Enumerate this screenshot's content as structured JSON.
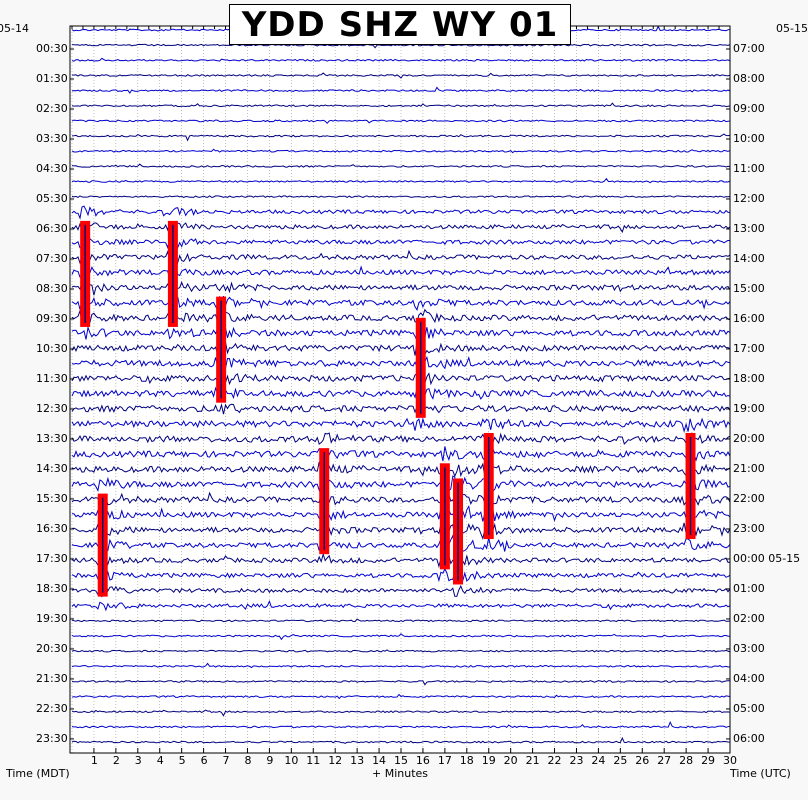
{
  "title": "YDD SHZ WY 01",
  "left_date": "05-14",
  "right_date": "05-15",
  "chart_data": {
    "type": "helicorder",
    "station": "YDD",
    "channel": "SHZ",
    "network": "WY",
    "location": "01",
    "xlabel": "+ Minutes",
    "ylabel_left": "Time (MDT)",
    "ylabel_right": "Time (UTC)",
    "xlim": [
      0,
      30
    ],
    "x_ticks": [
      "1",
      "2",
      "3",
      "4",
      "5",
      "6",
      "7",
      "8",
      "9",
      "10",
      "11",
      "12",
      "13",
      "14",
      "15",
      "16",
      "17",
      "18",
      "19",
      "20",
      "21",
      "22",
      "23",
      "24",
      "25",
      "26",
      "27",
      "28",
      "29",
      "30"
    ],
    "left_ticks": [
      "00:30",
      "01:30",
      "02:30",
      "03:30",
      "04:30",
      "05:30",
      "06:30",
      "07:30",
      "08:30",
      "09:30",
      "10:30",
      "11:30",
      "12:30",
      "13:30",
      "14:30",
      "15:30",
      "16:30",
      "17:30",
      "18:30",
      "19:30",
      "20:30",
      "21:30",
      "22:30",
      "23:30"
    ],
    "right_ticks": [
      "07:00",
      "08:00",
      "09:00",
      "10:00",
      "11:00",
      "12:00",
      "13:00",
      "14:00",
      "15:00",
      "16:00",
      "17:00",
      "18:00",
      "19:00",
      "20:00",
      "21:00",
      "22:00",
      "23:00",
      "00:00 05-15",
      "01:00",
      "02:00",
      "03:00",
      "04:00",
      "05:00",
      "06:00"
    ],
    "trace_count": 48,
    "trace_colors": [
      "#0000cc",
      "#000080"
    ],
    "clip_color": "#ff0000",
    "clipped_events": [
      {
        "minute": 0.6,
        "start_hour": 6.3,
        "end_hour": 9.8
      },
      {
        "minute": 4.6,
        "start_hour": 6.3,
        "end_hour": 9.8
      },
      {
        "minute": 6.8,
        "start_hour": 8.8,
        "end_hour": 12.3
      },
      {
        "minute": 15.9,
        "start_hour": 9.5,
        "end_hour": 12.8
      },
      {
        "minute": 1.4,
        "start_hour": 15.3,
        "end_hour": 18.7
      },
      {
        "minute": 11.5,
        "start_hour": 13.8,
        "end_hour": 17.3
      },
      {
        "minute": 17.0,
        "start_hour": 14.3,
        "end_hour": 17.8
      },
      {
        "minute": 17.6,
        "start_hour": 14.8,
        "end_hour": 18.3
      },
      {
        "minute": 19.0,
        "start_hour": 13.3,
        "end_hour": 16.8
      },
      {
        "minute": 28.2,
        "start_hour": 13.3,
        "end_hour": 16.8
      }
    ]
  }
}
